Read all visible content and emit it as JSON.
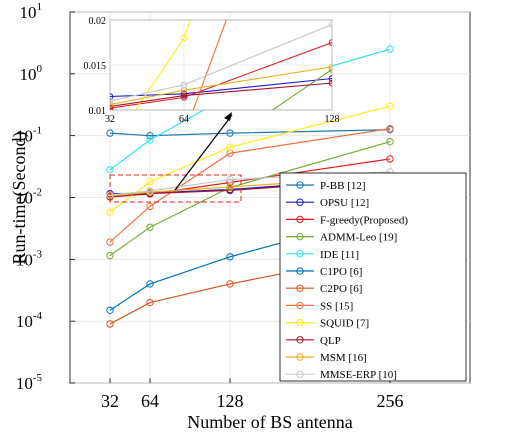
{
  "chart_data": {
    "type": "line",
    "xlabel": "Number of BS antenna",
    "ylabel": "Run-time(Second)",
    "x": [
      32,
      64,
      128,
      256
    ],
    "xlim": [
      0,
      320
    ],
    "xticks": [
      "32",
      "64",
      "128",
      "256"
    ],
    "y_scale": "log",
    "ylim": [
      1e-05,
      10
    ],
    "yticks": [
      {
        "base": "10",
        "exp": "-5"
      },
      {
        "base": "10",
        "exp": "-4"
      },
      {
        "base": "10",
        "exp": "-3"
      },
      {
        "base": "10",
        "exp": "-2"
      },
      {
        "base": "10",
        "exp": "-1"
      },
      {
        "base": "10",
        "exp": "0"
      },
      {
        "base": "10",
        "exp": "1"
      }
    ],
    "legend_position": "lower-right",
    "series": [
      {
        "name": "P-BB [12]",
        "color": "#1f77b4",
        "values": [
          0.11,
          0.1,
          0.11,
          0.125
        ]
      },
      {
        "name": "OPSU [12]",
        "color": "#1a1acc",
        "values": [
          0.0115,
          0.0118,
          0.0135,
          0.0205
        ]
      },
      {
        "name": "F-greedy(Proposed)",
        "color": "#e02020",
        "values": [
          0.0102,
          0.0114,
          0.0175,
          0.042
        ]
      },
      {
        "name": "ADMM-Leo [19]",
        "color": "#77ac30",
        "values": [
          0.00115,
          0.0033,
          0.0145,
          0.08
        ]
      },
      {
        "name": "IDE [11]",
        "color": "#33e0e8",
        "values": [
          0.028,
          0.085,
          0.45,
          2.5
        ]
      },
      {
        "name": "C1PO [6]",
        "color": "#0072bd",
        "values": [
          0.00015,
          0.0004,
          0.0011,
          0.0055
        ]
      },
      {
        "name": "C2PO [6]",
        "color": "#d95319",
        "values": [
          9e-05,
          0.0002,
          0.0004,
          0.0013
        ]
      },
      {
        "name": "SS [15]",
        "color": "#ee7040",
        "values": [
          0.0019,
          0.0072,
          0.052,
          0.13
        ]
      },
      {
        "name": "SQUID [7]",
        "color": "#ffee10",
        "values": [
          0.0058,
          0.018,
          0.065,
          0.3
        ]
      },
      {
        "name": "QLP",
        "color": "#a2142f",
        "values": [
          0.0104,
          0.0116,
          0.013,
          0.02
        ]
      },
      {
        "name": "MSM [16]",
        "color": "#edb120",
        "values": [
          0.0106,
          0.0122,
          0.0148,
          0.022
        ]
      },
      {
        "name": "MMSE-ERP [10]",
        "color": "#c8c8c8",
        "values": [
          0.011,
          0.0128,
          0.0195,
          0.026
        ]
      }
    ],
    "inset": {
      "xlim": [
        32,
        128
      ],
      "ylim": [
        0.01,
        0.02
      ],
      "xticks": [
        "32",
        "64",
        "128"
      ],
      "yticks": [
        "0.01",
        "0.015",
        "0.02"
      ]
    }
  }
}
